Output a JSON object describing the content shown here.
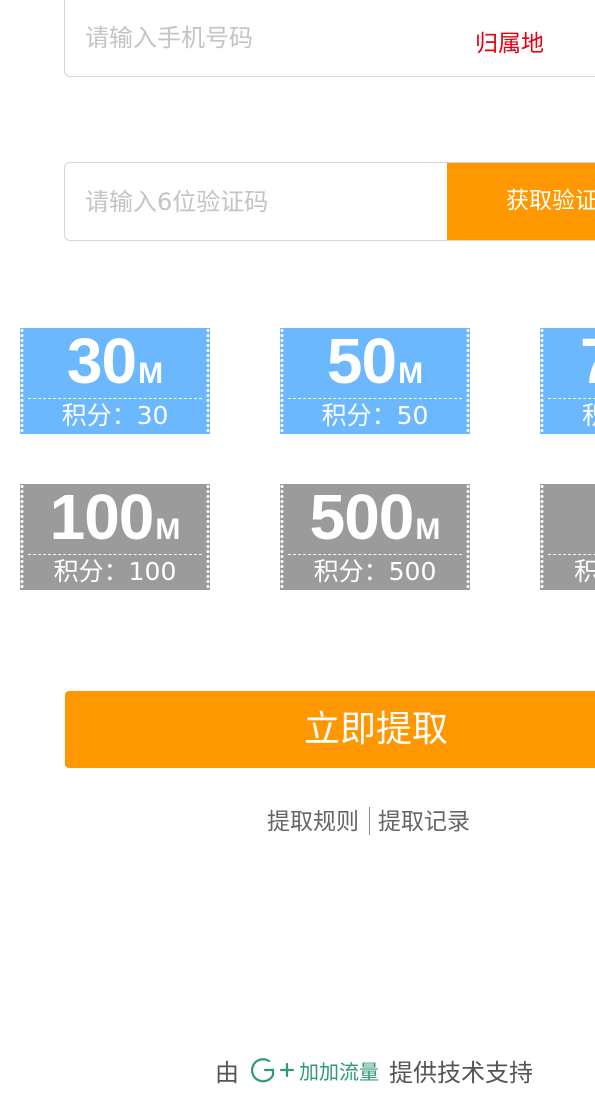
{
  "form": {
    "phone_placeholder": "请输入手机号码",
    "region_label": "归属地",
    "code_placeholder": "请输入6位验证码",
    "get_code_label": "获取验证码"
  },
  "tickets": [
    {
      "amount": "30",
      "unit": "M",
      "points": "积分：30",
      "state": "available"
    },
    {
      "amount": "50",
      "unit": "M",
      "points": "积分：50",
      "state": "available"
    },
    {
      "amount": "7",
      "unit": "",
      "points": "积",
      "state": "available"
    },
    {
      "amount": "100",
      "unit": "M",
      "points": "积分：100",
      "state": "disabled"
    },
    {
      "amount": "500",
      "unit": "M",
      "points": "积分：500",
      "state": "disabled"
    },
    {
      "amount": "",
      "unit": "",
      "points": "积",
      "state": "disabled"
    }
  ],
  "actions": {
    "claim_label": "立即提取",
    "rules_label": "提取规则",
    "records_label": "提取记录"
  },
  "footer": {
    "prefix": "由",
    "brand_name": "加加流量",
    "suffix": "提供技术支持"
  },
  "colors": {
    "accent": "#ff9800",
    "ticket_available": "#6cb8ff",
    "ticket_disabled": "#9b9b9b",
    "region": "#e60012",
    "brand": "#2f9a78"
  }
}
